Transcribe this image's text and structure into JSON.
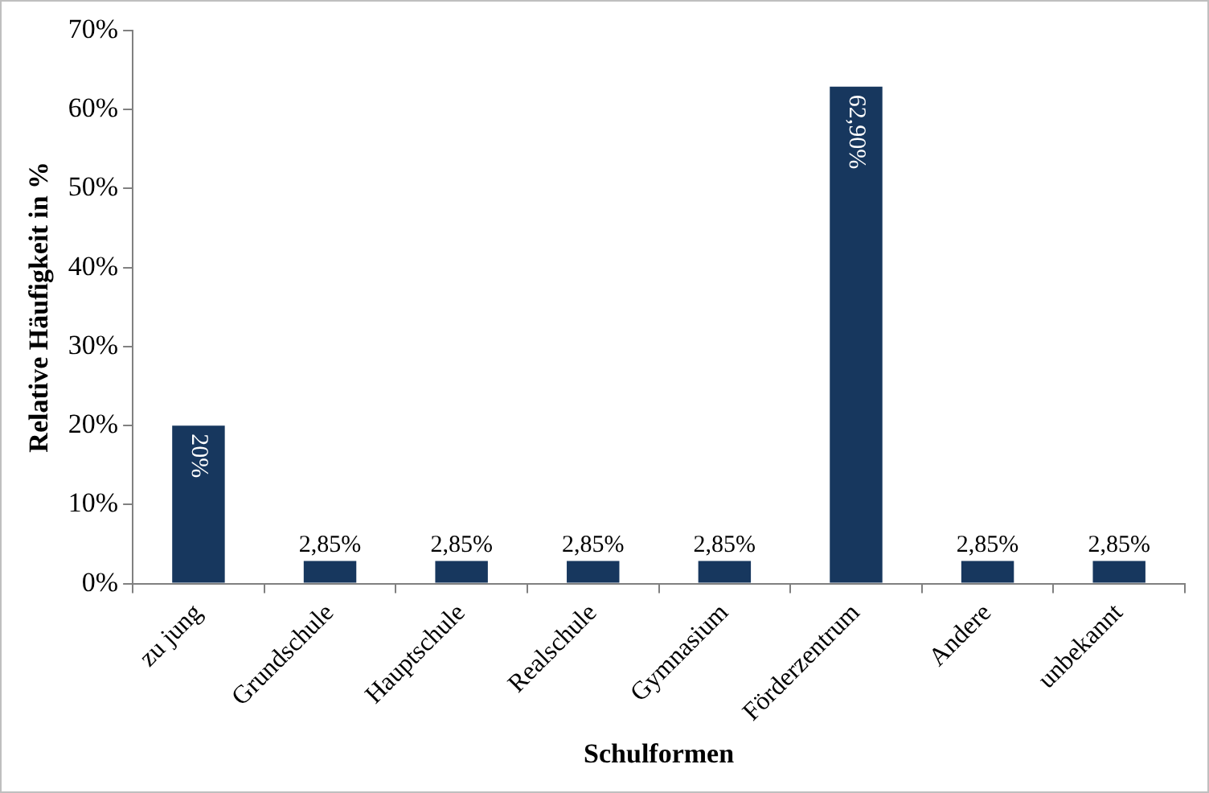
{
  "chart_data": {
    "type": "bar",
    "xlabel": "Schulformen",
    "ylabel": "Relative Häufigkeit in %",
    "categories": [
      "zu jung",
      "Grundschule",
      "Hauptschule",
      "Realschule",
      "Gymnasium",
      "Förderzentrum",
      "Andere",
      "unbekannt"
    ],
    "values": [
      20,
      2.85,
      2.85,
      2.85,
      2.85,
      62.9,
      2.85,
      2.85
    ],
    "value_labels": [
      "20%",
      "2,85%",
      "2,85%",
      "2,85%",
      "2,85%",
      "62,90%",
      "2,85%",
      "2,85%"
    ],
    "color": "#17375e",
    "ylim": [
      0,
      70
    ],
    "yticks": [
      {
        "value": 0,
        "label": "0%"
      },
      {
        "value": 10,
        "label": "10%"
      },
      {
        "value": 20,
        "label": "20%"
      },
      {
        "value": 30,
        "label": "30%"
      },
      {
        "value": 40,
        "label": "40%"
      },
      {
        "value": 50,
        "label": "50%"
      },
      {
        "value": 60,
        "label": "60%"
      },
      {
        "value": 70,
        "label": "70%"
      }
    ],
    "grid": false,
    "legend": false
  }
}
